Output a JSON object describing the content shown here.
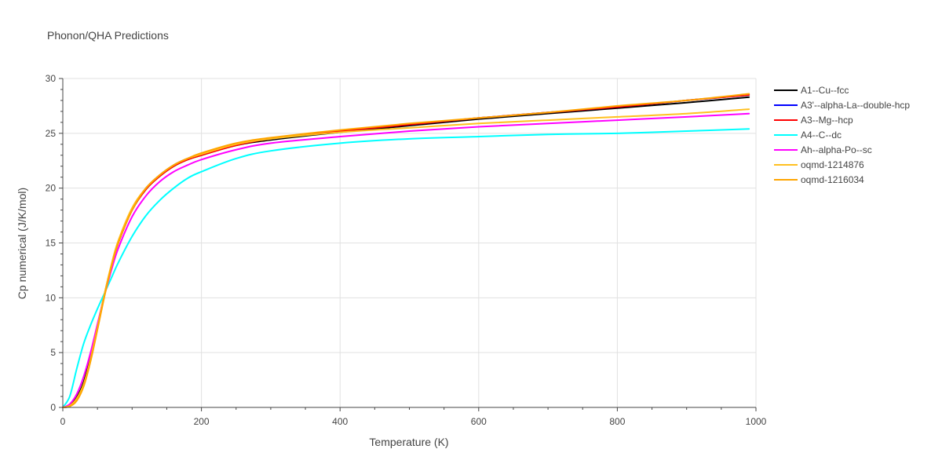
{
  "chart_data": {
    "type": "line",
    "title": "Phonon/QHA Predictions",
    "xlabel": "Temperature (K)",
    "ylabel": "Cp numerical (J/K/mol)",
    "xlim": [
      0,
      1000
    ],
    "ylim": [
      0,
      30
    ],
    "x_ticks": [
      "0",
      "200",
      "400",
      "600",
      "800",
      "1000"
    ],
    "y_ticks": [
      "0",
      "5",
      "10",
      "15",
      "20",
      "25",
      "30"
    ],
    "grid": true,
    "legend_position": "right",
    "series": [
      {
        "name": "A1--Cu--fcc",
        "color": "#000000",
        "x": [
          0,
          10,
          20,
          30,
          40,
          50,
          60,
          70,
          80,
          100,
          120,
          140,
          160,
          180,
          200,
          250,
          300,
          400,
          500,
          600,
          700,
          800,
          900,
          990
        ],
        "y": [
          0,
          0.2,
          0.9,
          2.3,
          4.6,
          7.4,
          10.3,
          12.9,
          15.0,
          18.0,
          19.9,
          21.1,
          22.0,
          22.6,
          23.0,
          23.9,
          24.4,
          25.1,
          25.7,
          26.3,
          26.8,
          27.3,
          27.8,
          28.3
        ]
      },
      {
        "name": "A3'--alpha-La--double-hcp",
        "color": "#0000ff",
        "x": [
          0,
          10,
          20,
          30,
          40,
          50,
          60,
          70,
          80,
          100,
          120,
          140,
          160,
          180,
          200,
          250,
          300,
          400,
          500,
          600,
          700,
          800,
          900,
          990
        ],
        "y": [
          0,
          0.1,
          0.7,
          2.0,
          4.3,
          7.2,
          10.2,
          12.9,
          15.1,
          18.1,
          20.0,
          21.2,
          22.1,
          22.7,
          23.1,
          24.0,
          24.5,
          25.2,
          25.8,
          26.4,
          26.9,
          27.4,
          28.0,
          28.5
        ]
      },
      {
        "name": "A3--Mg--hcp",
        "color": "#ff0000",
        "x": [
          0,
          10,
          20,
          30,
          40,
          50,
          60,
          70,
          80,
          100,
          120,
          140,
          160,
          180,
          200,
          250,
          300,
          400,
          500,
          600,
          700,
          800,
          900,
          990
        ],
        "y": [
          0,
          0.15,
          0.8,
          2.1,
          4.4,
          7.3,
          10.2,
          12.9,
          15.0,
          18.0,
          19.9,
          21.1,
          22.0,
          22.6,
          23.0,
          23.9,
          24.5,
          25.2,
          25.8,
          26.4,
          26.9,
          27.4,
          28.0,
          28.5
        ]
      },
      {
        "name": "A4--C--dc",
        "color": "#00ffff",
        "x": [
          0,
          10,
          20,
          30,
          40,
          50,
          60,
          70,
          80,
          100,
          120,
          140,
          160,
          180,
          200,
          250,
          300,
          400,
          500,
          600,
          700,
          800,
          900,
          990
        ],
        "y": [
          0,
          1.0,
          3.5,
          5.8,
          7.5,
          9.0,
          10.4,
          11.8,
          13.2,
          15.6,
          17.5,
          18.9,
          20.0,
          20.9,
          21.5,
          22.7,
          23.4,
          24.1,
          24.5,
          24.7,
          24.9,
          25.0,
          25.2,
          25.4
        ]
      },
      {
        "name": "Ah--alpha-Po--sc",
        "color": "#ff00ff",
        "x": [
          0,
          10,
          20,
          30,
          40,
          50,
          60,
          70,
          80,
          100,
          120,
          140,
          160,
          180,
          200,
          250,
          300,
          400,
          500,
          600,
          700,
          800,
          900,
          990
        ],
        "y": [
          0,
          0.3,
          1.2,
          2.8,
          5.0,
          7.6,
          10.2,
          12.5,
          14.5,
          17.4,
          19.3,
          20.6,
          21.5,
          22.1,
          22.6,
          23.5,
          24.1,
          24.7,
          25.2,
          25.6,
          25.9,
          26.2,
          26.5,
          26.8
        ]
      },
      {
        "name": "oqmd-1214876",
        "color": "#ffc020",
        "x": [
          0,
          10,
          20,
          30,
          40,
          50,
          60,
          70,
          80,
          100,
          120,
          140,
          160,
          180,
          200,
          250,
          300,
          400,
          500,
          600,
          700,
          800,
          900,
          990
        ],
        "y": [
          0,
          0.15,
          0.8,
          2.1,
          4.4,
          7.3,
          10.3,
          13.0,
          15.2,
          18.2,
          20.0,
          21.2,
          22.1,
          22.7,
          23.1,
          24.0,
          24.5,
          25.1,
          25.5,
          25.9,
          26.2,
          26.5,
          26.8,
          27.2
        ]
      },
      {
        "name": "oqmd-1216034",
        "color": "#ffa500",
        "x": [
          0,
          10,
          20,
          30,
          40,
          50,
          60,
          70,
          80,
          100,
          120,
          140,
          160,
          180,
          200,
          250,
          300,
          400,
          500,
          600,
          700,
          800,
          900,
          990
        ],
        "y": [
          0,
          0.1,
          0.6,
          1.9,
          4.2,
          7.1,
          10.1,
          12.8,
          15.0,
          18.0,
          20.0,
          21.2,
          22.1,
          22.7,
          23.2,
          24.1,
          24.6,
          25.3,
          25.9,
          26.4,
          26.9,
          27.5,
          28.0,
          28.6
        ]
      }
    ]
  }
}
